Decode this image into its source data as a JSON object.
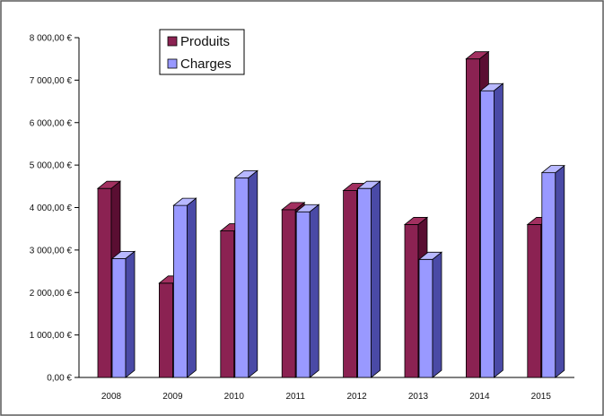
{
  "chart_data": {
    "type": "bar",
    "title": "",
    "xlabel": "",
    "ylabel": "",
    "categories": [
      "2008",
      "2009",
      "2010",
      "2011",
      "2012",
      "2013",
      "2014",
      "2015"
    ],
    "series": [
      {
        "name": "Produits",
        "values": [
          4450,
          2220,
          3450,
          3950,
          4400,
          3600,
          7500,
          3600
        ],
        "color": "#8b2252"
      },
      {
        "name": "Charges",
        "values": [
          2800,
          4050,
          4700,
          3900,
          4450,
          2780,
          6750,
          4820
        ],
        "color": "#9999ff"
      }
    ],
    "ylim": [
      0,
      8000
    ],
    "y_ticks": [
      "0,00 €",
      "1 000,00 €",
      "2 000,00 €",
      "3 000,00 €",
      "4 000,00 €",
      "5 000,00 €",
      "6 000,00 €",
      "7 000,00 €",
      "8 000,00 €"
    ],
    "grid": false,
    "legend_position": "top-left",
    "style": "3d-clustered-bar"
  }
}
